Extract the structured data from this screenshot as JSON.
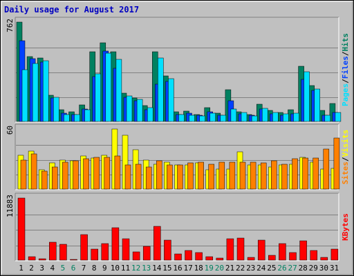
{
  "colors": {
    "background": "#c0c0c0",
    "hits": "#008060",
    "files": "#0040ff",
    "pages": "#00e0ff",
    "visits": "#ffff00",
    "sites": "#ff8000",
    "kbytes": "#ff0000",
    "title": "#0000c0",
    "weekend_label": "#008060",
    "weekday_label": "#000000"
  },
  "chart_data": {
    "type": "bar",
    "title": "Daily usage for August 2017",
    "categories": [
      "1",
      "2",
      "3",
      "4",
      "5",
      "6",
      "7",
      "8",
      "9",
      "10",
      "11",
      "12",
      "13",
      "14",
      "15",
      "16",
      "17",
      "18",
      "19",
      "20",
      "21",
      "22",
      "23",
      "24",
      "25",
      "26",
      "27",
      "28",
      "29",
      "30",
      "31"
    ],
    "weekend_days": [
      "5",
      "6",
      "12",
      "13",
      "19",
      "20",
      "26",
      "27"
    ],
    "panels": [
      {
        "name": "hits-files-pages",
        "ymax_label": "762",
        "ymax": 762,
        "legend": [
          "Pages",
          "Files",
          "Hits"
        ],
        "series": [
          {
            "name": "Hits",
            "color": "#008060",
            "values": [
              762,
              500,
              485,
              200,
              90,
              75,
              125,
              535,
              605,
              535,
              215,
              180,
              120,
              535,
              350,
              75,
              80,
              55,
              105,
              65,
              245,
              75,
              55,
              130,
              85,
              70,
              90,
              425,
              275,
              85,
              135
            ]
          },
          {
            "name": "Files",
            "color": "#0040ff",
            "values": [
              620,
              480,
              455,
              180,
              65,
              55,
              95,
              345,
              540,
              405,
              185,
              160,
              90,
              285,
              305,
              55,
              65,
              45,
              75,
              50,
              160,
              60,
              45,
              95,
              60,
              50,
              60,
              325,
              240,
              45,
              70
            ]
          },
          {
            "name": "Pages",
            "color": "#00e0ff",
            "values": [
              395,
              445,
              465,
              185,
              55,
              55,
              90,
              365,
              525,
              475,
              195,
              170,
              105,
              485,
              330,
              55,
              50,
              40,
              65,
              50,
              95,
              70,
              40,
              100,
              70,
              60,
              65,
              380,
              250,
              45,
              70
            ]
          }
        ]
      },
      {
        "name": "visits-sites",
        "ymax_label": "60",
        "ymax": 60,
        "legend": [
          "Sites",
          "Visits"
        ],
        "series": [
          {
            "name": "Visits",
            "color": "#ffff00",
            "values": [
              34,
              38,
              19,
              26,
              29,
              28,
              33,
              31,
              34,
              60,
              54,
              39,
              29,
              25,
              27,
              24,
              24,
              26,
              19,
              20,
              20,
              37,
              24,
              24,
              22,
              24,
              25,
              32,
              27,
              20,
              21
            ]
          },
          {
            "name": "Sites",
            "color": "#ff8000",
            "values": [
              29,
              35,
              18,
              22,
              27,
              28,
              30,
              32,
              32,
              33,
              24,
              25,
              22,
              28,
              24,
              24,
              26,
              27,
              25,
              27,
              27,
              27,
              27,
              26,
              28,
              25,
              30,
              31,
              31,
              40,
              51
            ]
          }
        ]
      },
      {
        "name": "kbytes",
        "ymax_label": "11883",
        "ymax": 11883,
        "legend": [
          "KBytes"
        ],
        "series": [
          {
            "name": "KBytes",
            "color": "#ff0000",
            "values": [
              11883,
              650,
              300,
              3450,
              3050,
              150,
              4950,
              2050,
              3200,
              6150,
              4050,
              1650,
              2600,
              6450,
              3800,
              1150,
              1900,
              1450,
              650,
              400,
              4050,
              4200,
              550,
              3800,
              950,
              3200,
              1450,
              3650,
              1800,
              550,
              2100
            ]
          }
        ]
      }
    ]
  }
}
